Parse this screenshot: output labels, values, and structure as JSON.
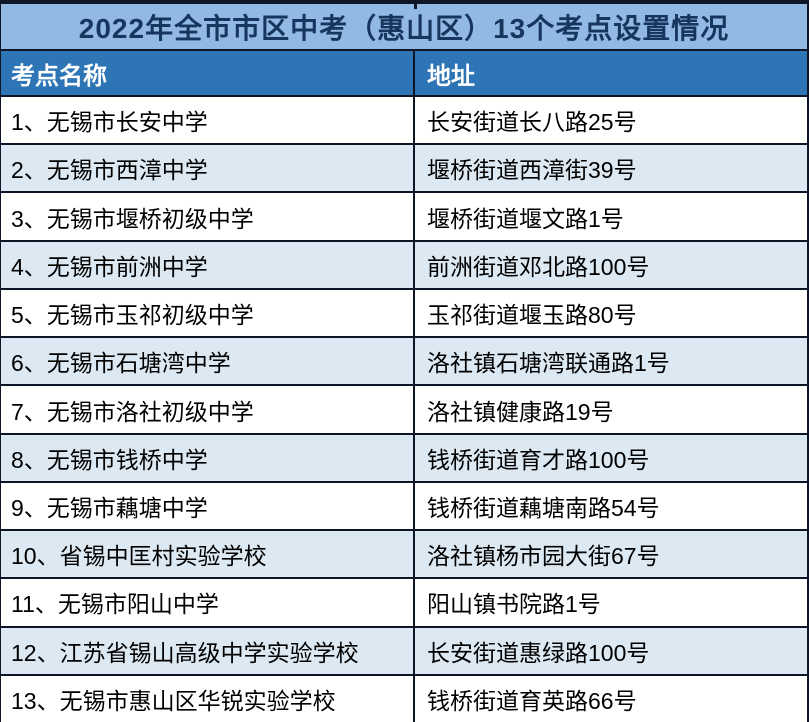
{
  "title": "2022年全市市区中考（惠山区）13个考点设置情况",
  "columns": [
    {
      "key": "name",
      "label": "考点名称"
    },
    {
      "key": "address",
      "label": "地址"
    }
  ],
  "rows": [
    {
      "name": "1、无锡市长安中学",
      "address": "长安街道长八路25号"
    },
    {
      "name": "2、无锡市西漳中学",
      "address": "堰桥街道西漳街39号"
    },
    {
      "name": "3、无锡市堰桥初级中学",
      "address": "堰桥街道堰文路1号"
    },
    {
      "name": "4、无锡市前洲中学",
      "address": "前洲街道邓北路100号"
    },
    {
      "name": "5、无锡市玉祁初级中学",
      "address": "玉祁街道堰玉路80号"
    },
    {
      "name": "6、无锡市石塘湾中学",
      "address": "洛社镇石塘湾联通路1号"
    },
    {
      "name": "7、无锡市洛社初级中学",
      "address": "洛社镇健康路19号"
    },
    {
      "name": "8、无锡市钱桥中学",
      "address": "钱桥街道育才路100号"
    },
    {
      "name": "9、无锡市藕塘中学",
      "address": "钱桥街道藕塘南路54号"
    },
    {
      "name": "10、省锡中匡村实验学校",
      "address": "洛社镇杨市园大街67号"
    },
    {
      "name": "11、无锡市阳山中学",
      "address": "阳山镇书院路1号"
    },
    {
      "name": "12、江苏省锡山高级中学实验学校",
      "address": "长安街道惠绿路100号"
    },
    {
      "name": "13、无锡市惠山区华锐实验学校",
      "address": "钱桥街道育英路66号"
    }
  ],
  "colors": {
    "title_bg": "#92b9e4",
    "title_text": "#17365d",
    "header_bg": "#2e75b6",
    "header_text": "#ffffff",
    "row_bg": "#fffffe",
    "row_alt_bg": "#dce8f2",
    "row_text": "#000000",
    "border": "#0d1526"
  }
}
